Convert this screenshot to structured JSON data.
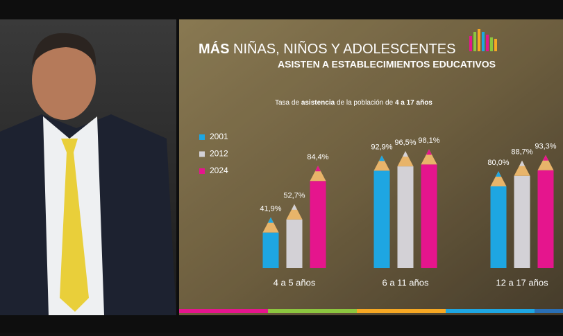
{
  "chart_data": {
    "type": "bar",
    "title_bold": "MÁS",
    "title": "NIÑAS, NIÑOS Y ADOLESCENTES",
    "subtitle": "ASISTEN A ESTABLECIMIENTOS EDUCATIVOS",
    "caption": [
      "Tasa de",
      "asistencia",
      "de la población de",
      "4 a 17 años"
    ],
    "categories": [
      "4 a 5 años",
      "6 a 11 años",
      "12 a 17 años"
    ],
    "series": [
      {
        "name": "2001",
        "color": "#1ea6e2",
        "values": [
          41.9,
          92.9,
          80.0
        ],
        "value_labels": [
          "41,9%",
          "92,9%",
          "80,0%"
        ]
      },
      {
        "name": "2012",
        "color": "#d3d1d6",
        "values": [
          52.7,
          96.5,
          88.7
        ],
        "value_labels": [
          "52,7%",
          "96,5%",
          "88,7%"
        ]
      },
      {
        "name": "2024",
        "color": "#e5158d",
        "values": [
          84.4,
          98.1,
          93.3
        ],
        "value_labels": [
          "84,4%",
          "98,1%",
          "93,3%"
        ]
      }
    ]
  }
}
